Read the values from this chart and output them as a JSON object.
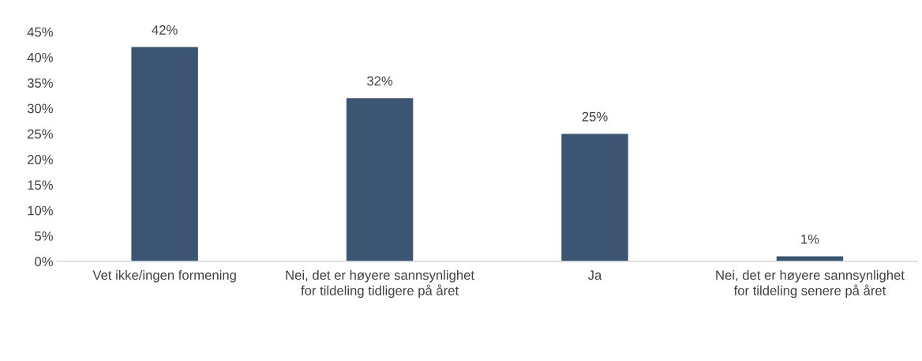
{
  "chart_data": {
    "type": "bar",
    "categories": [
      "Vet ikke/ingen formening",
      "Nei, det er høyere sannsynlighet for tildeling tidligere på året",
      "Ja",
      "Nei, det er høyere sannsynlighet for tildeling senere på året"
    ],
    "values": [
      42,
      32,
      25,
      1
    ],
    "value_labels": [
      "42%",
      "32%",
      "25%",
      "1%"
    ],
    "color": "#3b5573",
    "ylim": [
      0,
      45
    ],
    "yticks": [
      {
        "value": 0,
        "label": "0%"
      },
      {
        "value": 5,
        "label": "5%"
      },
      {
        "value": 10,
        "label": "10%"
      },
      {
        "value": 15,
        "label": "15%"
      },
      {
        "value": 20,
        "label": "20%"
      },
      {
        "value": 25,
        "label": "25%"
      },
      {
        "value": 30,
        "label": "30%"
      },
      {
        "value": 35,
        "label": "35%"
      },
      {
        "value": 40,
        "label": "40%"
      },
      {
        "value": 45,
        "label": "45%"
      }
    ],
    "grid": false,
    "legend": false
  }
}
